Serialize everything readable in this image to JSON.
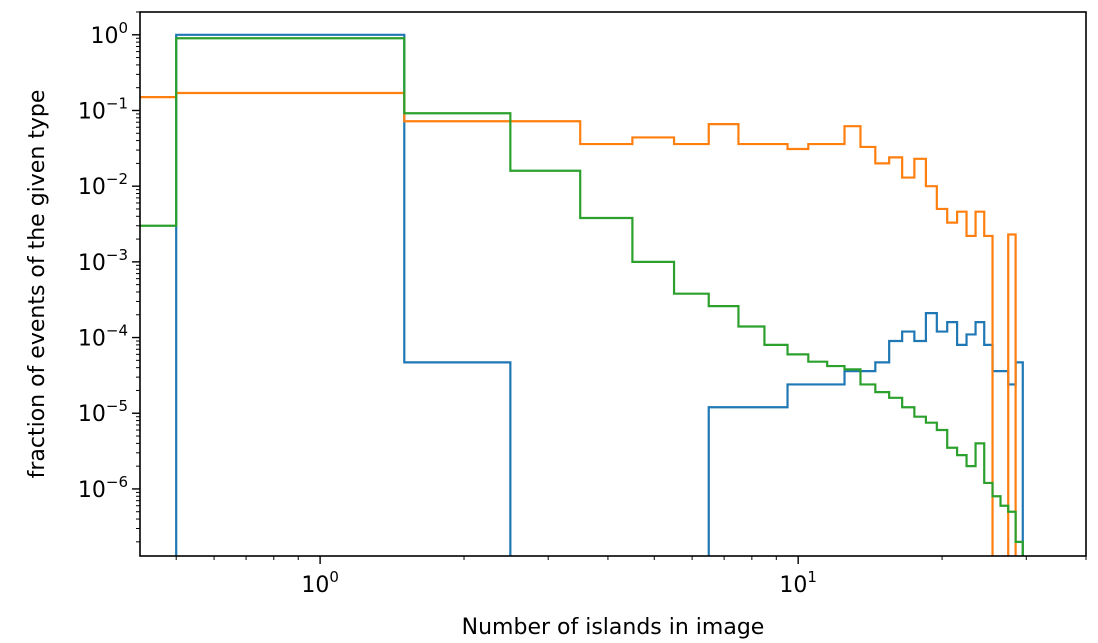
{
  "chart_data": {
    "type": "line",
    "subtype": "step-histogram",
    "xlabel": "Number of islands in image",
    "ylabel": "fraction of events of the given type",
    "xscale": "log",
    "yscale": "log",
    "xlim": [
      0.42,
      40
    ],
    "ylim": [
      1.3e-07,
      2.0
    ],
    "x_ticks": [
      {
        "value": 1,
        "base": "10",
        "exp": "0"
      },
      {
        "value": 10,
        "base": "10",
        "exp": "1"
      }
    ],
    "y_ticks": [
      {
        "value": 1,
        "base": "10",
        "exp": "0"
      },
      {
        "value": 0.1,
        "base": "10",
        "exp": "−1"
      },
      {
        "value": 0.01,
        "base": "10",
        "exp": "−2"
      },
      {
        "value": 0.001,
        "base": "10",
        "exp": "−3"
      },
      {
        "value": 0.0001,
        "base": "10",
        "exp": "−4"
      },
      {
        "value": 1e-05,
        "base": "10",
        "exp": "−5"
      },
      {
        "value": 1e-06,
        "base": "10",
        "exp": "−6"
      }
    ],
    "grid": false,
    "legend": false,
    "bin_edges": [
      0.5,
      1.5,
      2.5,
      3.5,
      4.5,
      5.5,
      6.5,
      7.5,
      8.5,
      9.5,
      10.5,
      11.5,
      12.5,
      13.5,
      14.5,
      15.5,
      16.5,
      17.5,
      18.5,
      19.5,
      20.5,
      21.5,
      22.5,
      23.5,
      24.5,
      25.5,
      26.5,
      27.5,
      28.5,
      29.5
    ],
    "series": [
      {
        "color": "#1f77b4",
        "left_edge": 0.5,
        "values": [
          1.0,
          4.7e-05,
          0,
          0,
          0,
          0,
          1.2e-05,
          1.2e-05,
          1.2e-05,
          2.4e-05,
          2.4e-05,
          2.4e-05,
          3.6e-05,
          3.6e-05,
          4.7e-05,
          9e-05,
          0.00012,
          9e-05,
          0.00021,
          0.00012,
          0.00016,
          8e-05,
          0.00011,
          0.00016,
          8e-05,
          3.6e-05,
          3.6e-05,
          2.4e-05,
          4.7e-05
        ]
      },
      {
        "color": "#ff7f0e",
        "left_edge": 0.35,
        "values": [
          0.15,
          0.17,
          0.072,
          0.072,
          0.036,
          0.044,
          0.036,
          0.066,
          0.036,
          0.036,
          0.031,
          0.036,
          0.036,
          0.062,
          0.033,
          0.02,
          0.024,
          0.013,
          0.023,
          0.01,
          0.005,
          0.0033,
          0.0046,
          0.0022,
          0.0046,
          0.0022,
          0,
          0,
          0.0023,
          0
        ]
      },
      {
        "color": "#2ca02c",
        "left_edge": 0.35,
        "values": [
          0.003,
          0.9,
          0.092,
          0.016,
          0.0038,
          0.001,
          0.00038,
          0.00026,
          0.00014,
          8e-05,
          6e-05,
          4.8e-05,
          4.2e-05,
          3.8e-05,
          2.4e-05,
          1.9e-05,
          1.6e-05,
          1.2e-05,
          9e-06,
          7.5e-06,
          6e-06,
          3.5e-06,
          2.8e-06,
          2e-06,
          4e-06,
          1.2e-06,
          8e-07,
          6e-07,
          5e-07,
          2e-07
        ]
      }
    ]
  }
}
